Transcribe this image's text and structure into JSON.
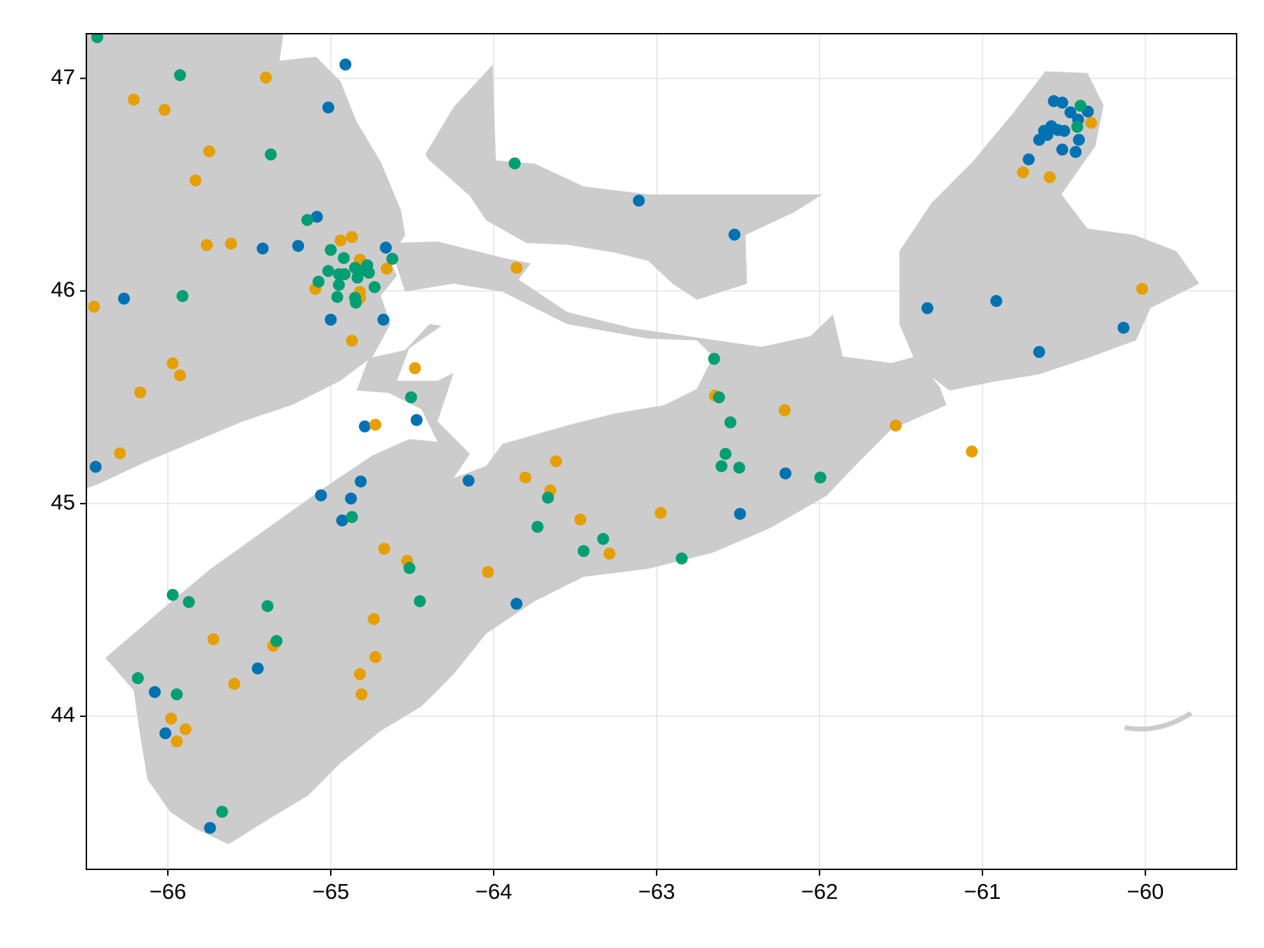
{
  "chart_data": {
    "type": "scatter",
    "xlim": [
      -66.5,
      -59.44
    ],
    "ylim": [
      43.28,
      47.21
    ],
    "xticks": [
      {
        "value": -66,
        "label": "−66"
      },
      {
        "value": -65,
        "label": "−65"
      },
      {
        "value": -64,
        "label": "−64"
      },
      {
        "value": -63,
        "label": "−63"
      },
      {
        "value": -62,
        "label": "−62"
      },
      {
        "value": -61,
        "label": "−61"
      },
      {
        "value": -60,
        "label": "−60"
      }
    ],
    "yticks": [
      44,
      45,
      46,
      47
    ],
    "grid": true,
    "series": [
      {
        "color": "#0072b2",
        "x": [
          -64.91,
          -65.015,
          -65.085,
          -65.2,
          -65.418,
          -64.662,
          -66.269,
          -65.0,
          -64.677,
          -64.791,
          -64.473,
          -66.443,
          -64.816,
          -65.06,
          -64.876,
          -64.93,
          -64.154,
          -63.86,
          -65.448,
          -66.08,
          -66.015,
          -65.741,
          -63.109,
          -62.522,
          -62.488,
          -62.209,
          -61.338,
          -60.915,
          -60.652,
          -60.134,
          -60.562,
          -60.51,
          -60.46,
          -60.353,
          -60.577,
          -60.622,
          -60.602,
          -60.498,
          -60.652,
          -60.408,
          -60.51,
          -60.428,
          -60.716,
          -60.537,
          -60.413
        ],
        "values": [
          47.065,
          46.863,
          46.349,
          46.212,
          46.2,
          46.204,
          45.964,
          45.865,
          45.865,
          45.363,
          45.393,
          45.173,
          45.104,
          45.039,
          45.024,
          44.921,
          45.108,
          44.529,
          44.225,
          44.114,
          43.92,
          43.475,
          46.425,
          46.265,
          44.952,
          45.142,
          45.919,
          45.953,
          45.713,
          45.827,
          46.893,
          46.886,
          46.84,
          46.844,
          46.775,
          46.753,
          46.734,
          46.753,
          46.711,
          46.711,
          46.665,
          46.654,
          46.619,
          46.757,
          46.806
        ]
      },
      {
        "color": "#e69f00",
        "x": [
          -66.453,
          -66.209,
          -66.02,
          -65.746,
          -65.83,
          -65.398,
          -65.761,
          -65.612,
          -64.94,
          -64.87,
          -64.821,
          -64.657,
          -65.095,
          -64.821,
          -64.821,
          -64.87,
          -64.483,
          -65.97,
          -65.925,
          -66.169,
          -66.294,
          -64.726,
          -63.86,
          -63.806,
          -63.617,
          -63.652,
          -63.468,
          -63.289,
          -62.975,
          -64.672,
          -64.532,
          -64.035,
          -64.736,
          -64.726,
          -64.821,
          -64.811,
          -65.353,
          -65.721,
          -65.592,
          -65.98,
          -65.891,
          -65.945,
          -62.642,
          -62.214,
          -61.532,
          -61.065,
          -60.02,
          -60.751,
          -60.587,
          -60.333
        ],
        "values": [
          45.926,
          46.9,
          46.852,
          46.657,
          46.52,
          47.004,
          46.216,
          46.223,
          46.238,
          46.254,
          46.147,
          46.105,
          46.01,
          45.995,
          45.968,
          45.766,
          45.637,
          45.66,
          45.603,
          45.523,
          45.237,
          45.371,
          46.109,
          45.123,
          45.199,
          45.062,
          44.925,
          44.765,
          44.956,
          44.788,
          44.731,
          44.678,
          44.457,
          44.278,
          44.198,
          44.103,
          44.331,
          44.362,
          44.152,
          43.989,
          43.939,
          43.882,
          45.508,
          45.439,
          45.367,
          45.245,
          46.01,
          46.558,
          46.535,
          46.791
        ]
      },
      {
        "color": "#009e73",
        "x": [
          -66.433,
          -65.925,
          -65.368,
          -65.144,
          -65.91,
          -65.0,
          -64.92,
          -65.015,
          -65.075,
          -64.95,
          -64.851,
          -64.816,
          -64.776,
          -64.766,
          -64.915,
          -64.95,
          -64.836,
          -64.731,
          -64.622,
          -64.96,
          -64.851,
          -64.846,
          -63.871,
          -64.507,
          -64.87,
          -63.667,
          -63.731,
          -63.448,
          -63.328,
          -64.517,
          -64.453,
          -65.97,
          -65.871,
          -65.388,
          -65.333,
          -66.184,
          -65.945,
          -65.667,
          -62.647,
          -62.617,
          -62.547,
          -62.577,
          -62.602,
          -62.493,
          -61.995,
          -62.846,
          -60.398,
          -60.418
        ],
        "values": [
          47.194,
          47.015,
          46.642,
          46.334,
          45.976,
          46.193,
          46.155,
          46.094,
          46.044,
          46.079,
          46.109,
          46.094,
          46.121,
          46.086,
          46.079,
          46.029,
          46.063,
          46.018,
          46.151,
          45.972,
          45.968,
          45.945,
          46.6,
          45.5,
          44.937,
          45.028,
          44.891,
          44.777,
          44.834,
          44.697,
          44.541,
          44.571,
          44.537,
          44.518,
          44.354,
          44.179,
          44.103,
          43.551,
          45.681,
          45.5,
          45.382,
          45.234,
          45.176,
          45.169,
          45.123,
          44.742,
          46.871,
          46.772
        ]
      }
    ]
  }
}
